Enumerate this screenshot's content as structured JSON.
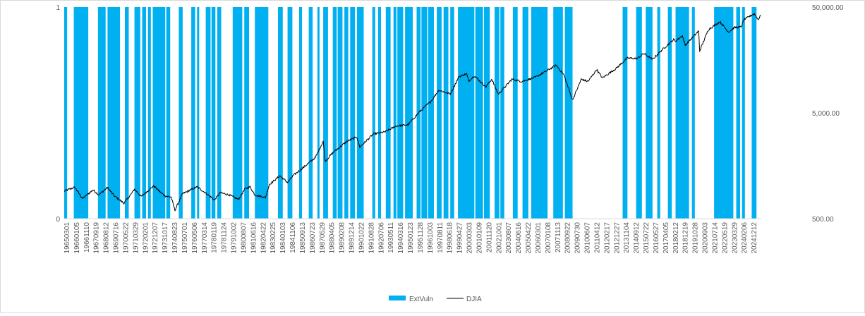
{
  "chart_data": {
    "type": "bar+line",
    "title": "",
    "series": [
      {
        "name": "ExtVuln",
        "kind": "bar",
        "axis": "left",
        "color": "#00b0f0"
      },
      {
        "name": "DJIA",
        "kind": "line",
        "axis": "right",
        "scale": "log",
        "color": "#000000"
      }
    ],
    "left_axis": {
      "min": 0,
      "max": 1,
      "ticks": [
        "0",
        "1"
      ]
    },
    "right_axis": {
      "min": 500,
      "max": 50000,
      "ticks": [
        "500.00",
        "5,000.00",
        "50,000.00"
      ]
    },
    "x_tick_labels": [
      "19650301",
      "19660105",
      "19661110",
      "19670919",
      "19680812",
      "19690716",
      "19700522",
      "19710329",
      "19720201",
      "19721207",
      "19731017",
      "19740823",
      "19750701",
      "19760506",
      "19770314",
      "19780119",
      "19781124",
      "19791002",
      "19800807",
      "19810616",
      "19820422",
      "19830225",
      "19840103",
      "19841106",
      "19850913",
      "19860723",
      "19870529",
      "19880405",
      "19890208",
      "19891214",
      "19901022",
      "19910828",
      "19920706",
      "19930511",
      "19940316",
      "19950123",
      "19951128",
      "19961003",
      "19970811",
      "19980618",
      "19990427",
      "20000303",
      "20010109",
      "20011120",
      "20021001",
      "20030807",
      "20040616",
      "20050422",
      "20060301",
      "20070108",
      "20071113",
      "20080922",
      "20090730",
      "20100607",
      "20110412",
      "20120217",
      "20121227",
      "20131104",
      "20140912",
      "20150722",
      "20160527",
      "20170405",
      "20180212",
      "20181219",
      "20191028",
      "20200903",
      "20210714",
      "20220519",
      "20230329",
      "20240206",
      "20241212"
    ],
    "extvuln_periods": [
      [
        "1965-03",
        "1965-05"
      ],
      [
        "1966-01",
        "1967-03"
      ],
      [
        "1968-02",
        "1968-09"
      ],
      [
        "1968-12",
        "1969-12"
      ],
      [
        "1970-06",
        "1970-09"
      ],
      [
        "1971-04",
        "1971-09"
      ],
      [
        "1971-12",
        "1972-03"
      ],
      [
        "1972-06",
        "1972-08"
      ],
      [
        "1972-11",
        "1973-11"
      ],
      [
        "1974-01",
        "1974-04"
      ],
      [
        "1975-02",
        "1975-05"
      ],
      [
        "1976-03",
        "1976-06"
      ],
      [
        "1976-09",
        "1976-10"
      ],
      [
        "1977-06",
        "1977-10"
      ],
      [
        "1977-12",
        "1978-03"
      ],
      [
        "1978-06",
        "1978-09"
      ],
      [
        "1979-10",
        "1980-07"
      ],
      [
        "1980-10",
        "1981-02"
      ],
      [
        "1981-09",
        "1982-10"
      ],
      [
        "1983-09",
        "1984-01"
      ],
      [
        "1984-07",
        "1984-11"
      ],
      [
        "1985-07",
        "1985-09"
      ],
      [
        "1986-05",
        "1986-08"
      ],
      [
        "1987-02",
        "1987-03"
      ],
      [
        "1987-08",
        "1987-12"
      ],
      [
        "1988-06",
        "1988-09"
      ],
      [
        "1988-11",
        "1989-03"
      ],
      [
        "1989-06",
        "1989-09"
      ],
      [
        "1989-12",
        "1990-04"
      ],
      [
        "1990-07",
        "1991-01"
      ],
      [
        "1991-11",
        "1992-01"
      ],
      [
        "1992-05",
        "1992-07"
      ],
      [
        "1993-01",
        "1993-05"
      ],
      [
        "1993-09",
        "1993-11"
      ],
      [
        "1994-01",
        "1994-06"
      ],
      [
        "1994-09",
        "1995-04"
      ],
      [
        "1995-09",
        "1995-12"
      ],
      [
        "1996-02",
        "1996-07"
      ],
      [
        "1996-09",
        "1997-02"
      ],
      [
        "1997-06",
        "1997-10"
      ],
      [
        "1998-01",
        "1998-05"
      ],
      [
        "1998-08",
        "1998-11"
      ],
      [
        "1999-04",
        "2000-08"
      ],
      [
        "2000-10",
        "2001-05"
      ],
      [
        "2001-07",
        "2001-12"
      ],
      [
        "2002-06",
        "2002-10"
      ],
      [
        "2002-12",
        "2003-03"
      ],
      [
        "2004-01",
        "2004-05"
      ],
      [
        "2004-11",
        "2005-04"
      ],
      [
        "2005-08",
        "2006-12"
      ],
      [
        "2007-07",
        "2008-04"
      ],
      [
        "2008-07",
        "2009-02"
      ],
      [
        "2013-07",
        "2013-11"
      ],
      [
        "2014-09",
        "2015-02"
      ],
      [
        "2015-07",
        "2016-01"
      ],
      [
        "2016-07",
        "2016-09"
      ],
      [
        "2017-06",
        "2017-09"
      ],
      [
        "2018-02",
        "2019-03"
      ],
      [
        "2019-07",
        "2019-09"
      ],
      [
        "2021-06",
        "2023-01"
      ],
      [
        "2023-05",
        "2023-08"
      ],
      [
        "2023-11",
        "2024-01"
      ],
      [
        "2024-09",
        "2025-01"
      ]
    ],
    "djia_anchors": [
      [
        "1965-03",
        910
      ],
      [
        "1966-02",
        990
      ],
      [
        "1966-10",
        775
      ],
      [
        "1967-09",
        935
      ],
      [
        "1968-03",
        840
      ],
      [
        "1968-12",
        985
      ],
      [
        "1969-07",
        820
      ],
      [
        "1970-05",
        700
      ],
      [
        "1970-12",
        840
      ],
      [
        "1971-04",
        950
      ],
      [
        "1971-11",
        810
      ],
      [
        "1972-12",
        1020
      ],
      [
        "1973-08",
        870
      ],
      [
        "1973-12",
        820
      ],
      [
        "1974-06",
        800
      ],
      [
        "1974-10",
        600
      ],
      [
        "1975-06",
        860
      ],
      [
        "1976-09",
        1000
      ],
      [
        "1977-10",
        820
      ],
      [
        "1978-03",
        750
      ],
      [
        "1978-09",
        880
      ],
      [
        "1979-06",
        840
      ],
      [
        "1980-04",
        760
      ],
      [
        "1980-11",
        960
      ],
      [
        "1981-04",
        1000
      ],
      [
        "1981-09",
        840
      ],
      [
        "1982-08",
        790
      ],
      [
        "1982-12",
        1050
      ],
      [
        "1983-11",
        1270
      ],
      [
        "1984-07",
        1100
      ],
      [
        "1985-01",
        1280
      ],
      [
        "1985-12",
        1540
      ],
      [
        "1986-12",
        1900
      ],
      [
        "1987-08",
        2700
      ],
      [
        "1987-10",
        1740
      ],
      [
        "1988-06",
        2100
      ],
      [
        "1989-09",
        2700
      ],
      [
        "1990-07",
        2960
      ],
      [
        "1990-10",
        2370
      ],
      [
        "1991-12",
        3150
      ],
      [
        "1992-12",
        3300
      ],
      [
        "1993-12",
        3760
      ],
      [
        "1994-12",
        3850
      ],
      [
        "1995-12",
        5100
      ],
      [
        "1996-12",
        6450
      ],
      [
        "1997-08",
        8200
      ],
      [
        "1998-08",
        7540
      ],
      [
        "1999-05",
        11000
      ],
      [
        "2000-01",
        11700
      ],
      [
        "2000-03",
        10000
      ],
      [
        "2000-09",
        11200
      ],
      [
        "2001-09",
        8800
      ],
      [
        "2002-03",
        10400
      ],
      [
        "2002-10",
        7500
      ],
      [
        "2003-12",
        10400
      ],
      [
        "2004-10",
        9900
      ],
      [
        "2005-12",
        10800
      ],
      [
        "2006-12",
        12450
      ],
      [
        "2007-10",
        14100
      ],
      [
        "2008-06",
        11400
      ],
      [
        "2008-11",
        8400
      ],
      [
        "2009-03",
        6600
      ],
      [
        "2009-12",
        10400
      ],
      [
        "2010-07",
        9900
      ],
      [
        "2011-04",
        12800
      ],
      [
        "2011-10",
        10700
      ],
      [
        "2012-12",
        13100
      ],
      [
        "2013-12",
        16500
      ],
      [
        "2014-10",
        16300
      ],
      [
        "2015-05",
        18200
      ],
      [
        "2016-02",
        16000
      ],
      [
        "2016-12",
        19700
      ],
      [
        "2017-12",
        24700
      ],
      [
        "2018-02",
        23800
      ],
      [
        "2018-09",
        26800
      ],
      [
        "2018-12",
        21800
      ],
      [
        "2019-12",
        28500
      ],
      [
        "2020-02",
        29500
      ],
      [
        "2020-03",
        19200
      ],
      [
        "2020-12",
        30600
      ],
      [
        "2021-12",
        36300
      ],
      [
        "2022-09",
        29000
      ],
      [
        "2023-03",
        32000
      ],
      [
        "2023-10",
        32400
      ],
      [
        "2024-01",
        38000
      ],
      [
        "2024-10",
        42500
      ],
      [
        "2024-12",
        43000
      ],
      [
        "2025-04",
        37800
      ],
      [
        "2025-06",
        42200
      ]
    ]
  },
  "legend": {
    "items": [
      {
        "label": "ExtVuln"
      },
      {
        "label": "DJIA"
      }
    ]
  }
}
